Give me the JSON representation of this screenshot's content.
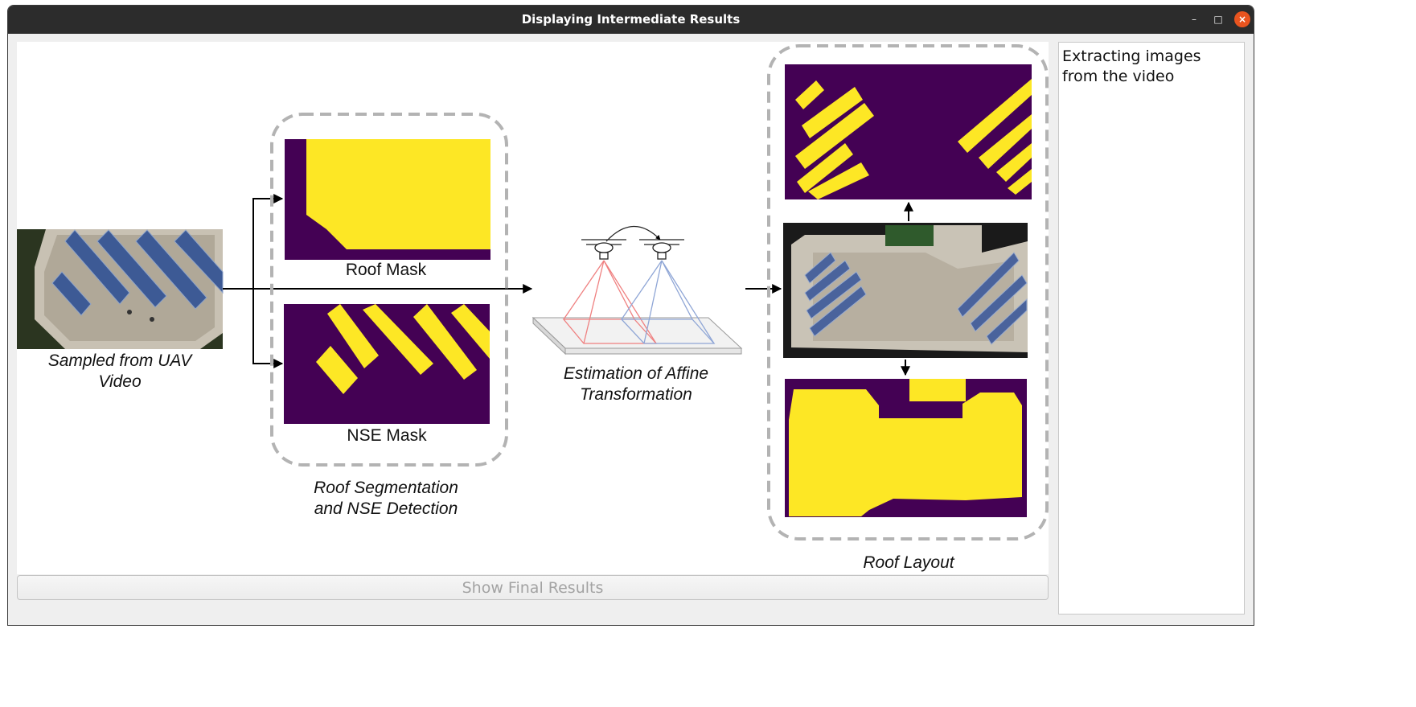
{
  "window": {
    "title": "Displaying Intermediate Results",
    "controls": {
      "minimize": "–",
      "maximize": "□",
      "close": "×"
    }
  },
  "pipeline": {
    "input_caption": [
      "Sampled from UAV",
      "Video"
    ],
    "roof_mask_label": "Roof Mask",
    "nse_mask_label": "NSE Mask",
    "segmentation_caption": [
      "Roof Segmentation",
      "and NSE Detection"
    ],
    "affine_caption": [
      "Estimation of Affine",
      "Transformation"
    ],
    "layout_caption": "Roof Layout"
  },
  "colors": {
    "mask_background": "#440154",
    "mask_foreground": "#fde725",
    "panel_outline": "#b3b3b3",
    "close_button": "#e9541f"
  },
  "buttons": {
    "show_final_results": "Show Final Results"
  },
  "log": {
    "text": "Extracting images\nfrom the video"
  }
}
